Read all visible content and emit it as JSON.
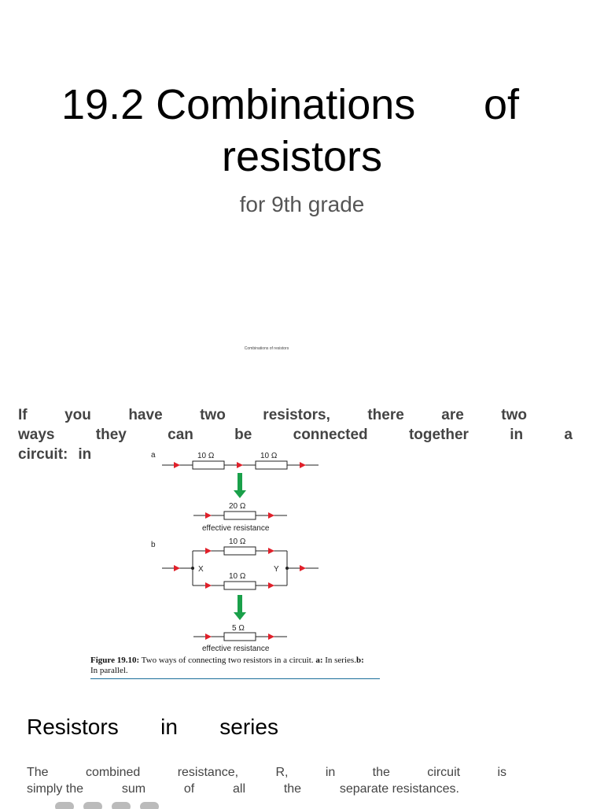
{
  "title": {
    "line1_a": "19.2 Combinations",
    "line1_b": "of",
    "line2": "resistors"
  },
  "subtitle": "for 9th grade",
  "small_caption": "Combinations     of resistors",
  "intro": {
    "row1": [
      "If",
      "you",
      "have",
      "two",
      "resistors,",
      "there",
      "are",
      "two"
    ],
    "row2": [
      "ways",
      "they",
      "can",
      "be",
      "connected",
      "together",
      "in",
      "a"
    ],
    "row3": [
      "circuit:",
      "in"
    ]
  },
  "figure": {
    "label_a": "a",
    "label_b": "b",
    "series_r1": "10 Ω",
    "series_r2": "10 Ω",
    "series_eff": "20 Ω",
    "parallel_r1": "10 Ω",
    "parallel_r2": "10 Ω",
    "parallel_eff": "5 Ω",
    "node_x": "X",
    "node_y": "Y",
    "effective_label_1": "effective resistance",
    "effective_label_2": "effective resistance",
    "caption_fig": "Figure 19.10:",
    "caption_text": " Two ways of connecting two resistors in a circuit. ",
    "caption_a": "a:",
    "caption_a_text": " In series.",
    "caption_b": "b:",
    "caption_b_text": "In parallel.",
    "colors": {
      "arrow": "#e0202a",
      "down_arrow": "#1aa04a",
      "wire": "#222222"
    }
  },
  "section_heading": [
    "Resistors",
    "in",
    "series"
  ],
  "body": {
    "row1": [
      "The",
      "combined",
      "resistance,",
      "R,",
      "in",
      "the",
      "circuit",
      "is"
    ],
    "row2": [
      "simply the",
      "sum",
      "of",
      "all",
      "the",
      "separate resistances."
    ]
  }
}
